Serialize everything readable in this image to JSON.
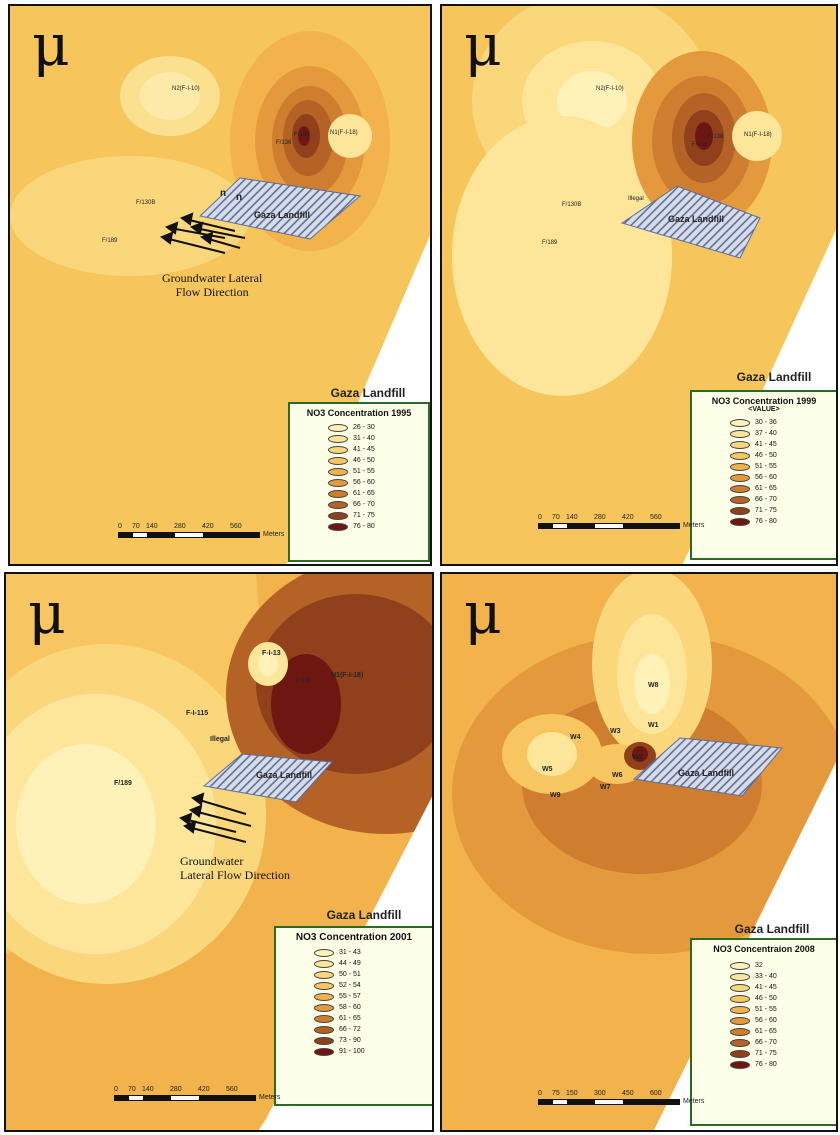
{
  "north_symbol": "μ",
  "legend_title": "Gaza Landfill",
  "landfill_label": "Gaza Landfill",
  "flow_label_line1": "Groundwater Lateral",
  "flow_label_line2": "Flow Direction",
  "flow_label_b_line1": "Groundwater",
  "flow_label_b_line2": "Lateral Flow Direction",
  "scale_units": "Meters",
  "panels": [
    {
      "legend_heading": "NO3 Concentration 1995",
      "legend_sub": "",
      "classes": [
        {
          "label": "26 - 30",
          "color": "#fff2b8"
        },
        {
          "label": "31 - 40",
          "color": "#fde69a"
        },
        {
          "label": "41 - 45",
          "color": "#fbd77c"
        },
        {
          "label": "46 - 50",
          "color": "#f8c660"
        },
        {
          "label": "51 - 55",
          "color": "#f2b34c"
        },
        {
          "label": "56 - 60",
          "color": "#e49a3c"
        },
        {
          "label": "61 - 65",
          "color": "#cf7e30"
        },
        {
          "label": "66 - 70",
          "color": "#b46226"
        },
        {
          "label": "71 - 75",
          "color": "#90411b"
        },
        {
          "label": "76 - 80",
          "color": "#6e1712"
        }
      ],
      "scale_ticks": [
        "0",
        "70",
        "140",
        "280",
        "420",
        "560"
      ],
      "points": {
        "n2": "N2(F-I-10)",
        "n1": "N1(F-I-18)",
        "f138": "F/138",
        "f136": "F/136",
        "f130b": "F/130B",
        "f189": "F/189",
        "n_a": "n",
        "n_b": "n"
      }
    },
    {
      "legend_heading": "NO3 Concentration 1999",
      "legend_sub": "<VALUE>",
      "classes": [
        {
          "label": "30 - 36",
          "color": "#fff2b8"
        },
        {
          "label": "37 - 40",
          "color": "#fde69a"
        },
        {
          "label": "41 - 45",
          "color": "#fbd77c"
        },
        {
          "label": "46 - 50",
          "color": "#f8c660"
        },
        {
          "label": "51 - 55",
          "color": "#f2b34c"
        },
        {
          "label": "56 - 60",
          "color": "#e49a3c"
        },
        {
          "label": "61 - 65",
          "color": "#cf7e30"
        },
        {
          "label": "66 - 70",
          "color": "#b46226"
        },
        {
          "label": "71 - 75",
          "color": "#90411b"
        },
        {
          "label": "76 - 80",
          "color": "#6e1712"
        }
      ],
      "scale_ticks": [
        "0",
        "70",
        "140",
        "280",
        "420",
        "560"
      ],
      "points": {
        "n2": "N2(F-I-10)",
        "n1": "N1(F-I-18)",
        "f138": "F/138",
        "f136": "F/136",
        "f130b": "F/130B",
        "f189": "F/189",
        "illegal": "Illegal"
      }
    },
    {
      "legend_heading": "NO3 Concentration 2001",
      "legend_sub": "",
      "classes": [
        {
          "label": "31 - 43",
          "color": "#fff2b8"
        },
        {
          "label": "44 - 49",
          "color": "#fde69a"
        },
        {
          "label": "50 - 51",
          "color": "#fbd77c"
        },
        {
          "label": "52 - 54",
          "color": "#f8c660"
        },
        {
          "label": "55 - 57",
          "color": "#f2b34c"
        },
        {
          "label": "58 - 60",
          "color": "#e49a3c"
        },
        {
          "label": "61 - 65",
          "color": "#cf7e30"
        },
        {
          "label": "66 - 72",
          "color": "#b46226"
        },
        {
          "label": "73 - 90",
          "color": "#90411b"
        },
        {
          "label": "91 - 100",
          "color": "#6e1712"
        }
      ],
      "scale_ticks": [
        "0",
        "70",
        "140",
        "280",
        "420",
        "560"
      ],
      "points": {
        "fi13": "F-I-13",
        "n1": "N1(F-I-18)",
        "f138": "F/138",
        "fi115": "F-I-115",
        "illegal": "Illegal",
        "f189": "F/189"
      }
    },
    {
      "legend_heading": "NO3 Concentraion 2008",
      "legend_sub": "",
      "classes": [
        {
          "label": "32",
          "color": "#fff2b8"
        },
        {
          "label": "33 - 40",
          "color": "#fde69a"
        },
        {
          "label": "41 - 45",
          "color": "#fbd77c"
        },
        {
          "label": "46 - 50",
          "color": "#f8c660"
        },
        {
          "label": "51 - 55",
          "color": "#f2b34c"
        },
        {
          "label": "56 - 60",
          "color": "#e49a3c"
        },
        {
          "label": "61 - 65",
          "color": "#cf7e30"
        },
        {
          "label": "66 - 70",
          "color": "#b46226"
        },
        {
          "label": "71 - 75",
          "color": "#90411b"
        },
        {
          "label": "76 - 80",
          "color": "#6e1712"
        }
      ],
      "scale_ticks": [
        "0",
        "75",
        "150",
        "300",
        "450",
        "600"
      ],
      "points": {
        "w8": "W8",
        "w1": "W1",
        "w3": "W3",
        "w4": "W4",
        "w2": "W2",
        "w5": "W5",
        "w6": "W6",
        "w7": "W7",
        "w9": "W9"
      }
    }
  ]
}
